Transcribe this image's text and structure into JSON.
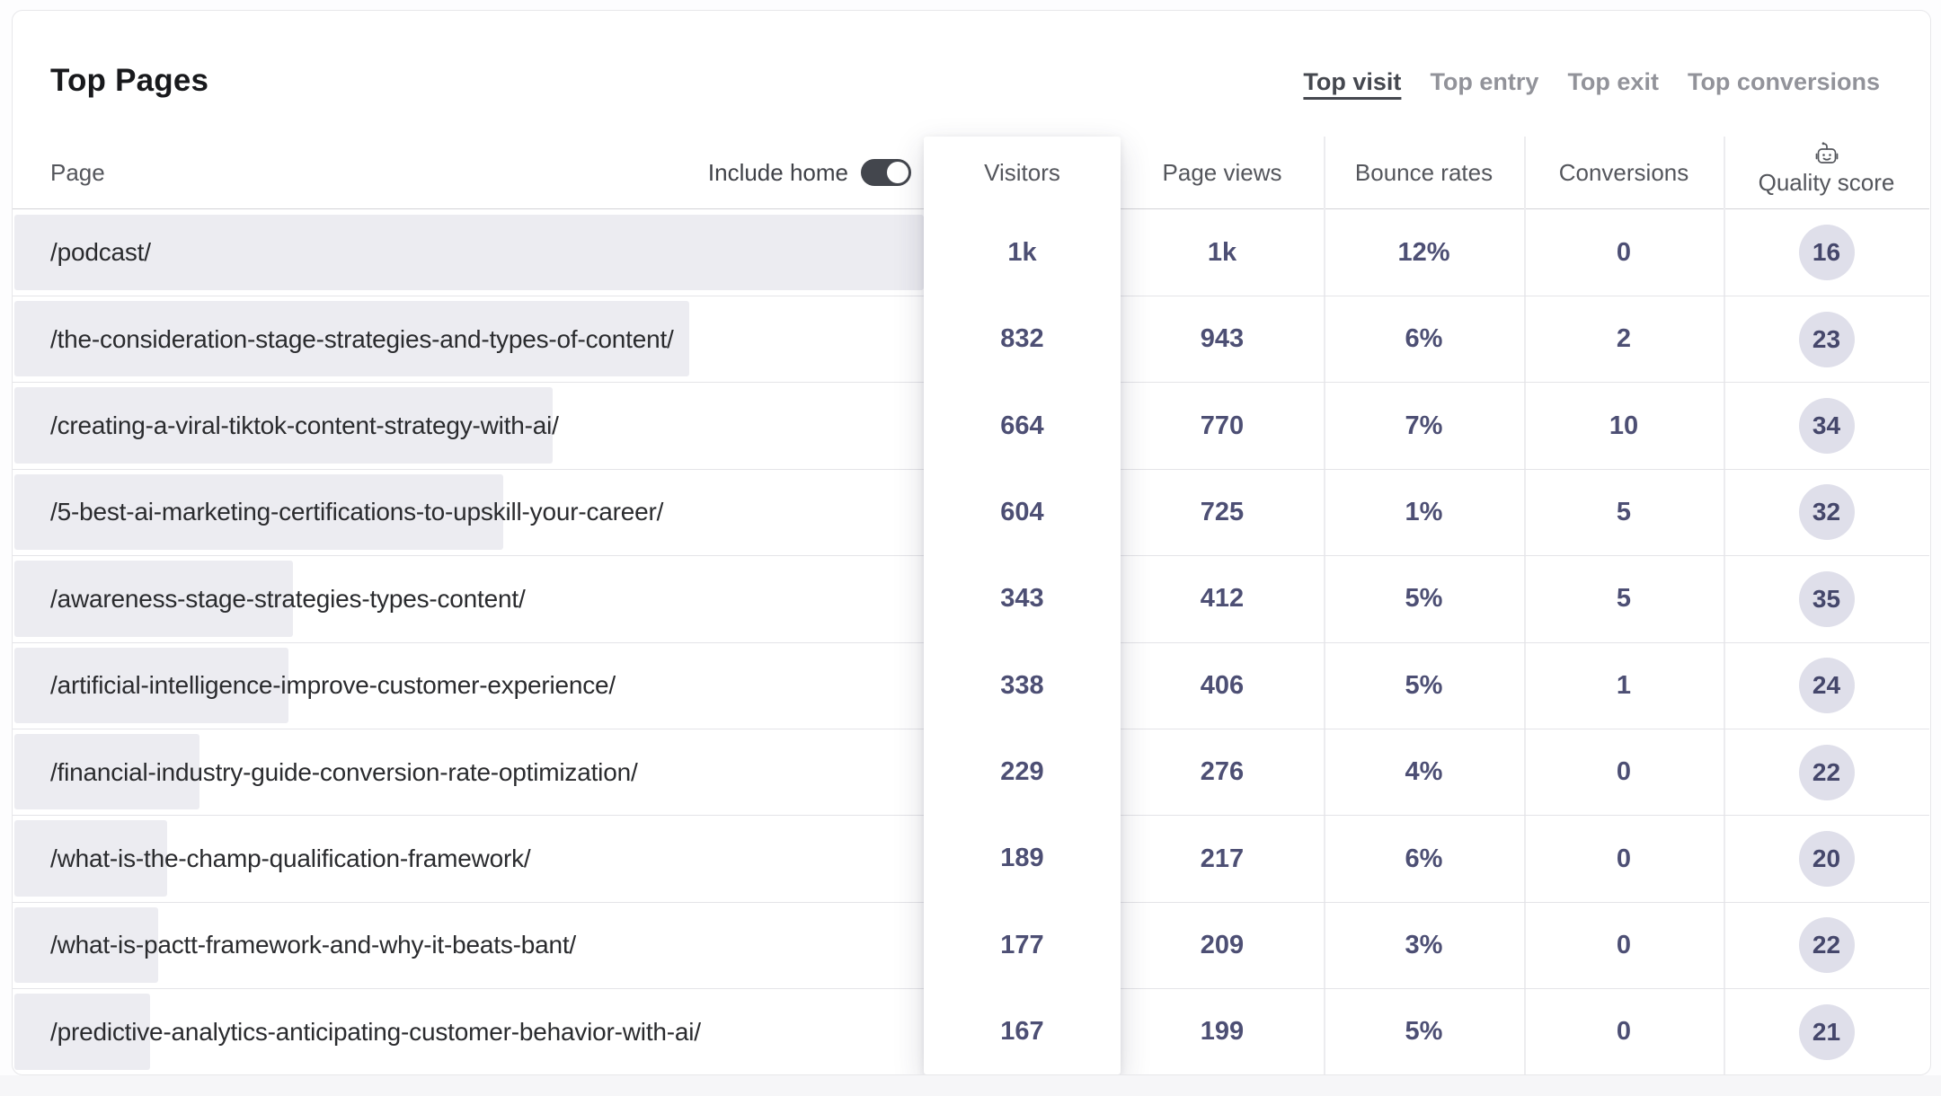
{
  "header": {
    "title": "Top Pages",
    "tabs": [
      {
        "label": "Top visit",
        "active": true
      },
      {
        "label": "Top entry",
        "active": false
      },
      {
        "label": "Top exit",
        "active": false
      },
      {
        "label": "Top conversions",
        "active": false
      }
    ]
  },
  "table": {
    "columns": {
      "page": "Page",
      "visitors": "Visitors",
      "page_views": "Page views",
      "bounce_rates": "Bounce rates",
      "conversions": "Conversions",
      "quality_score": "Quality score"
    },
    "include_home": {
      "label": "Include home",
      "state": "on"
    },
    "rows": [
      {
        "page": "/podcast/",
        "visitors": "1k",
        "page_views": "1k",
        "bounce_rate": "12%",
        "conversions": "0",
        "quality_score": "16",
        "bar_pct": 100
      },
      {
        "page": "/the-consideration-stage-strategies-and-types-of-content/",
        "visitors": "832",
        "page_views": "943",
        "bounce_rate": "6%",
        "conversions": "2",
        "quality_score": "23",
        "bar_pct": 74.2
      },
      {
        "page": "/creating-a-viral-tiktok-content-strategy-with-ai/",
        "visitors": "664",
        "page_views": "770",
        "bounce_rate": "7%",
        "conversions": "10",
        "quality_score": "34",
        "bar_pct": 59.2
      },
      {
        "page": "/5-best-ai-marketing-certifications-to-upskill-your-career/",
        "visitors": "604",
        "page_views": "725",
        "bounce_rate": "1%",
        "conversions": "5",
        "quality_score": "32",
        "bar_pct": 53.8
      },
      {
        "page": "/awareness-stage-strategies-types-content/",
        "visitors": "343",
        "page_views": "412",
        "bounce_rate": "5%",
        "conversions": "5",
        "quality_score": "35",
        "bar_pct": 30.6
      },
      {
        "page": "/artificial-intelligence-improve-customer-experience/",
        "visitors": "338",
        "page_views": "406",
        "bounce_rate": "5%",
        "conversions": "1",
        "quality_score": "24",
        "bar_pct": 30.1
      },
      {
        "page": "/financial-industry-guide-conversion-rate-optimization/",
        "visitors": "229",
        "page_views": "276",
        "bounce_rate": "4%",
        "conversions": "0",
        "quality_score": "22",
        "bar_pct": 20.4
      },
      {
        "page": "/what-is-the-champ-qualification-framework/",
        "visitors": "189",
        "page_views": "217",
        "bounce_rate": "6%",
        "conversions": "0",
        "quality_score": "20",
        "bar_pct": 16.8
      },
      {
        "page": "/what-is-pactt-framework-and-why-it-beats-bant/",
        "visitors": "177",
        "page_views": "209",
        "bounce_rate": "3%",
        "conversions": "0",
        "quality_score": "22",
        "bar_pct": 15.8
      },
      {
        "page": "/predictive-analytics-anticipating-customer-behavior-with-ai/",
        "visitors": "167",
        "page_views": "199",
        "bounce_rate": "5%",
        "conversions": "0",
        "quality_score": "21",
        "bar_pct": 14.9
      }
    ]
  },
  "icons": {
    "quality_score_header": "robot-icon"
  },
  "colors": {
    "metric_text": "#4d4f74",
    "badge_bg": "#dfdfea",
    "bar_bg": "#ececf1",
    "toggle_on_bg": "#43464d",
    "active_tab_text": "#45484f",
    "inactive_tab_text": "#92939a"
  }
}
